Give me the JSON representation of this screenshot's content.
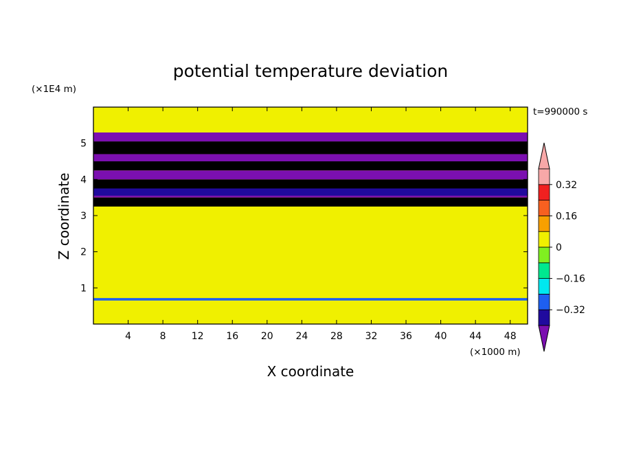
{
  "chart_data": {
    "type": "heatmap",
    "title": "potential temperature deviation",
    "xlabel": "X coordinate",
    "ylabel": "Z coordinate",
    "x_unit": "(×1000 m)",
    "y_unit": "(×1E4 m)",
    "time_label": "t=990000 s",
    "xlim": [
      0,
      50
    ],
    "ylim": [
      0,
      6
    ],
    "x_ticks": [
      4,
      8,
      12,
      16,
      20,
      24,
      28,
      32,
      36,
      40,
      44,
      48
    ],
    "y_ticks": [
      1,
      2,
      3,
      4,
      5
    ],
    "colorbar": {
      "levels": [
        -0.4,
        -0.32,
        -0.24,
        -0.16,
        -0.08,
        0,
        0.08,
        0.16,
        0.24,
        0.32,
        0.4
      ],
      "labels": [
        "0.32",
        "0.16",
        "0",
        "−0.16",
        "−0.32"
      ],
      "label_values": [
        0.32,
        0.16,
        0,
        -0.16,
        -0.32
      ],
      "colors": [
        "#7b0fb0",
        "#200a9e",
        "#1e5ff0",
        "#00e8f0",
        "#00e890",
        "#80f020",
        "#f0f000",
        "#f8a000",
        "#f86020",
        "#f02020",
        "#f8a8a8"
      ]
    },
    "bands": [
      {
        "z": [
          0.0,
          0.15
        ],
        "value": 0.0
      },
      {
        "z": [
          0.15,
          0.65
        ],
        "value": 0.04
      },
      {
        "z": [
          0.65,
          0.72
        ],
        "value": -0.3
      },
      {
        "z": [
          0.72,
          3.25
        ],
        "value": 0.02
      },
      {
        "z": [
          3.25,
          3.5
        ],
        "value": 0.45
      },
      {
        "z": [
          3.5,
          3.55
        ],
        "value": -0.45
      },
      {
        "z": [
          3.55,
          3.75
        ],
        "value": -0.35
      },
      {
        "z": [
          3.75,
          4.0
        ],
        "value": 0.45
      },
      {
        "z": [
          4.0,
          4.25
        ],
        "value": -0.45
      },
      {
        "z": [
          4.25,
          4.5
        ],
        "value": 0.45
      },
      {
        "z": [
          4.5,
          4.7
        ],
        "value": -0.45
      },
      {
        "z": [
          4.7,
          5.05
        ],
        "value": 0.45
      },
      {
        "z": [
          5.05,
          5.3
        ],
        "value": -0.45
      },
      {
        "z": [
          5.3,
          5.6
        ],
        "value": 0.05
      },
      {
        "z": [
          5.6,
          6.0
        ],
        "value": 0.04
      }
    ]
  }
}
